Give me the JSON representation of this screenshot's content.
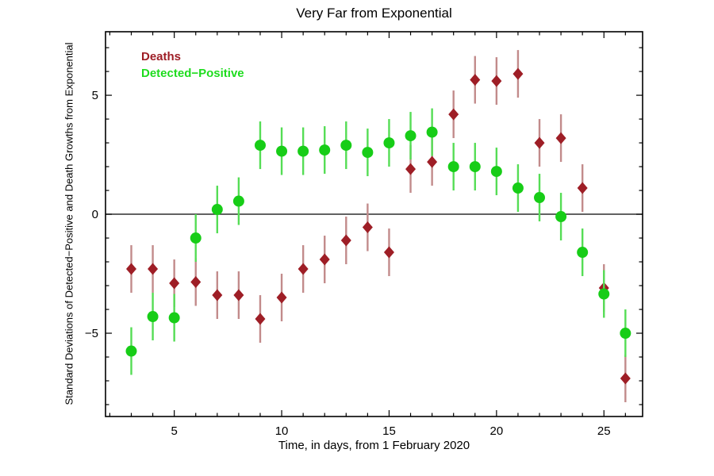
{
  "title": "Very Far from Exponential",
  "chart_data": {
    "type": "scatter",
    "title": "Very Far from Exponential",
    "xlabel": "Time, in days, from 1 February 2020",
    "ylabel": "Standard Deviations of Detected−Positive and Death Growths from Exponential",
    "x": [
      3,
      4,
      5,
      6,
      7,
      8,
      9,
      10,
      11,
      12,
      13,
      14,
      15,
      16,
      17,
      18,
      19,
      20,
      21,
      22,
      23,
      24,
      25,
      26
    ],
    "series": [
      {
        "name": "Deaths",
        "marker": "diamond",
        "marker_color": "#9e1e26",
        "bar_color": "#c28b8b",
        "label_color": "#9e1e26",
        "error": 1.0,
        "values": [
          -2.3,
          -2.3,
          -2.9,
          -2.85,
          -3.4,
          -3.4,
          -4.4,
          -3.5,
          -2.3,
          -1.9,
          -1.1,
          -0.55,
          -1.6,
          1.9,
          2.2,
          4.2,
          5.65,
          5.6,
          5.9,
          3.0,
          3.2,
          1.1,
          -3.1,
          -6.9
        ]
      },
      {
        "name": "Detected−Positive",
        "marker": "circle",
        "marker_color": "#17cd17",
        "bar_color": "#55dd55",
        "label_color": "#1edc1e",
        "error": 1.0,
        "values": [
          -5.75,
          -4.3,
          -4.35,
          -1.0,
          0.2,
          0.55,
          2.9,
          2.65,
          2.65,
          2.7,
          2.9,
          2.6,
          3.0,
          3.3,
          3.45,
          2.0,
          2.0,
          1.8,
          1.1,
          0.7,
          -0.1,
          -1.6,
          -3.35,
          -5.0
        ]
      }
    ],
    "xlim": [
      1.8,
      26.8
    ],
    "ylim": [
      -8.5,
      7.67
    ],
    "xticks_labeled": [
      5,
      10,
      15,
      20,
      25
    ],
    "yticks_labeled": [
      -5,
      0,
      5
    ],
    "xticks_minor_from": 2,
    "xticks_minor_to": 26,
    "yticks_minor_from": -8,
    "yticks_minor_to": 7,
    "zero_line": true,
    "grid": false,
    "legend_position": "top-left"
  }
}
